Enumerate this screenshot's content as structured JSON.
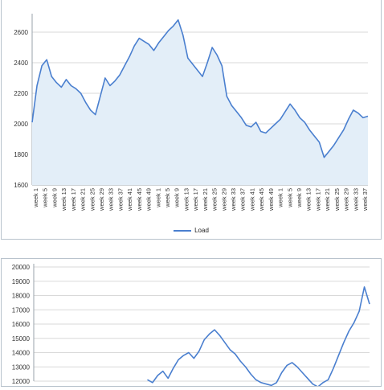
{
  "chart_data": [
    {
      "type": "area",
      "title": "",
      "xlabel": "",
      "ylabel": "",
      "ylim": [
        1600,
        2700
      ],
      "yticks": [
        "1600",
        "1800",
        "2000",
        "2200",
        "2400",
        "2600"
      ],
      "x_tick_labels": [
        "week 1",
        "week 5",
        "week 9",
        "week 13",
        "week 17",
        "week 21",
        "week 25",
        "week 29",
        "week 33",
        "week 37",
        "week 41",
        "week 45",
        "week 49",
        "week 1",
        "week 5",
        "week 9",
        "week 13",
        "week 17",
        "week 21",
        "week 25",
        "week 29",
        "week 33",
        "week 37",
        "week 41",
        "week 45",
        "week 49",
        "week 1",
        "week 5",
        "week 9",
        "week 13",
        "week 17",
        "week 21",
        "week 25",
        "week 29",
        "week 33",
        "week 37"
      ],
      "grid": true,
      "legend": "bottom",
      "color": "#4a7fcf",
      "fill_color": "#e3eef8",
      "series": [
        {
          "name": "Load",
          "values": [
            2010,
            2250,
            2380,
            2420,
            2310,
            2270,
            2240,
            2290,
            2250,
            2230,
            2200,
            2140,
            2090,
            2060,
            2180,
            2300,
            2250,
            2280,
            2320,
            2380,
            2440,
            2510,
            2560,
            2540,
            2520,
            2480,
            2530,
            2570,
            2610,
            2640,
            2680,
            2580,
            2430,
            2390,
            2350,
            2310,
            2400,
            2500,
            2450,
            2380,
            2180,
            2120,
            2080,
            2040,
            1990,
            1980,
            2010,
            1950,
            1940,
            1970,
            2000,
            2030,
            2080,
            2130,
            2090,
            2040,
            2010,
            1960,
            1920,
            1880,
            1780,
            1820,
            1860,
            1910,
            1960,
            2030,
            2090,
            2070,
            2040,
            2050
          ]
        }
      ]
    },
    {
      "type": "line",
      "title": "",
      "ylim": [
        12000,
        20000
      ],
      "yticks": [
        "12000",
        "13000",
        "14000",
        "15000",
        "16000",
        "17000",
        "18000",
        "19000",
        "20000"
      ],
      "grid": true,
      "color": "#4a7fcf",
      "series": [
        {
          "values": [
            null,
            null,
            null,
            null,
            null,
            null,
            null,
            null,
            null,
            null,
            null,
            null,
            null,
            null,
            null,
            null,
            null,
            null,
            null,
            null,
            null,
            null,
            12100,
            11900,
            12400,
            12700,
            12200,
            12900,
            13500,
            13800,
            14000,
            13600,
            14100,
            14900,
            15300,
            15600,
            15200,
            14700,
            14200,
            13900,
            13400,
            13000,
            12500,
            12100,
            11900,
            11800,
            11700,
            11900,
            12600,
            13100,
            13300,
            13000,
            12600,
            12200,
            11800,
            11600,
            11900,
            12100,
            12900,
            13800,
            14700,
            15500,
            16100,
            16900,
            18600,
            17400
          ]
        }
      ]
    }
  ]
}
